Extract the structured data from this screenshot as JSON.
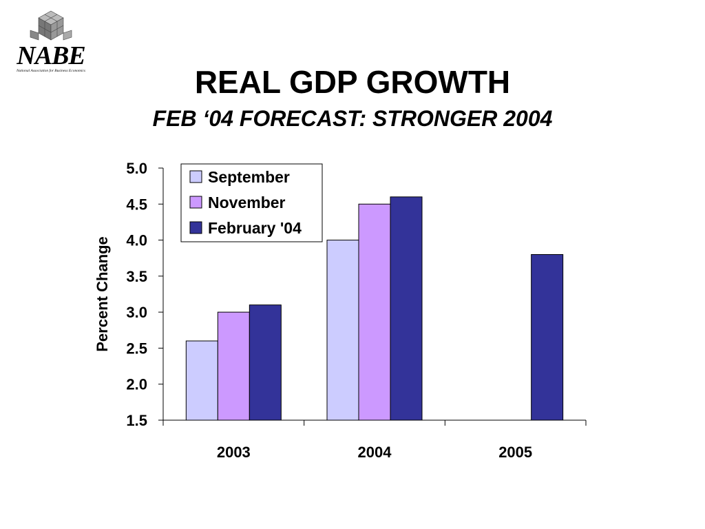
{
  "logo": {
    "text": "NABE",
    "subtext": "National Association for Business Economics"
  },
  "title": "REAL GDP GROWTH",
  "subtitle": "FEB ‘04 FORECAST: STRONGER 2004",
  "colors": {
    "September": "#ccccff",
    "November": "#cc99ff",
    "February '04": "#333399"
  },
  "chart_data": {
    "type": "bar",
    "categories": [
      "2003",
      "2004",
      "2005"
    ],
    "series": [
      {
        "name": "September",
        "values": [
          2.6,
          4.0,
          null
        ]
      },
      {
        "name": "November",
        "values": [
          3.0,
          4.5,
          null
        ]
      },
      {
        "name": "February '04",
        "values": [
          3.1,
          4.6,
          3.8
        ]
      }
    ],
    "ylabel": "Percent Change",
    "xlabel": "",
    "ylim": [
      1.5,
      5.0
    ],
    "yticks": [
      "1.5",
      "2.0",
      "2.5",
      "3.0",
      "3.5",
      "4.0",
      "4.5",
      "5.0"
    ],
    "legend_position": "top-left",
    "grid": false
  }
}
